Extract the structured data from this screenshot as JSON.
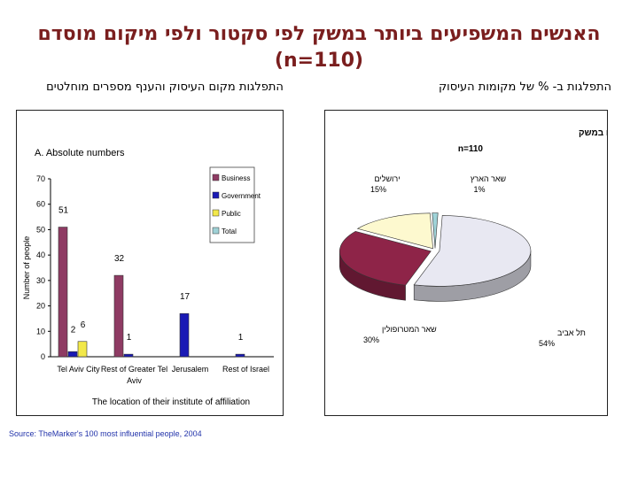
{
  "slide": {
    "title_line1": "האנשים המשפיעים ביותר במשק לפי סקטור ולפי מיקום מוסדם",
    "title_line2": "(n=110)",
    "left_heading": "התפלגות מקום העיסוק והענף מספרים מוחלטים",
    "right_heading": "התפלגות ב- % של מקומות העיסוק",
    "source": "Source: TheMarker's 100 most influential people, 2004"
  },
  "colors": {
    "title": "#7a1e1e",
    "business": "#8e3b63",
    "government": "#1a1ab5",
    "public": "#f2e84a",
    "total": "#9fd1d6",
    "pie_tel_aviv": "#e8e8f2",
    "pie_metro": "#8e2448",
    "pie_jerusalem": "#fdf9cf",
    "pie_rest": "#9fd3d8"
  },
  "chart_data": [
    {
      "type": "bar",
      "title": "A. Absolute numbers",
      "xlabel": "The location of their institute of affiliation",
      "ylabel": "Number of people",
      "ylim": [
        0,
        70
      ],
      "yticks": [
        0,
        10,
        20,
        30,
        40,
        50,
        60,
        70
      ],
      "grid": false,
      "legend": "top-right",
      "categories": [
        "Tel Aviv City",
        "Rest of Greater Tel Aviv",
        "Jerusalem",
        "Rest of Israel"
      ],
      "series": [
        {
          "name": "Business",
          "values": [
            51,
            32,
            0,
            0
          ]
        },
        {
          "name": "Government",
          "values": [
            2,
            1,
            17,
            1
          ]
        },
        {
          "name": "Public",
          "values": [
            6,
            0,
            0,
            0
          ]
        },
        {
          "name": "Total",
          "values": [
            0,
            0,
            0,
            0
          ]
        }
      ],
      "data_labels": [
        {
          "category": 0,
          "series": 0,
          "text": "51"
        },
        {
          "category": 0,
          "series": 1,
          "text": "2"
        },
        {
          "category": 0,
          "series": 2,
          "text": "6"
        },
        {
          "category": 1,
          "series": 0,
          "text": "32"
        },
        {
          "category": 1,
          "series": 1,
          "text": "1"
        },
        {
          "category": 2,
          "series": 1,
          "text": "17"
        },
        {
          "category": 3,
          "series": 1,
          "text": "1"
        }
      ]
    },
    {
      "type": "pie",
      "title": "התפלגות מקומות העיסוק של האנשים המשפיעים במשק",
      "subtitle": "n=110",
      "slices": [
        {
          "label": "תל אביב",
          "value": 54,
          "text": "54%"
        },
        {
          "label": "שאר המטרופולין",
          "value": 30,
          "text": "30%"
        },
        {
          "label": "ירושלים",
          "value": 15,
          "text": "15%"
        },
        {
          "label": "שאר הארץ",
          "value": 1,
          "text": "1%"
        }
      ]
    }
  ]
}
